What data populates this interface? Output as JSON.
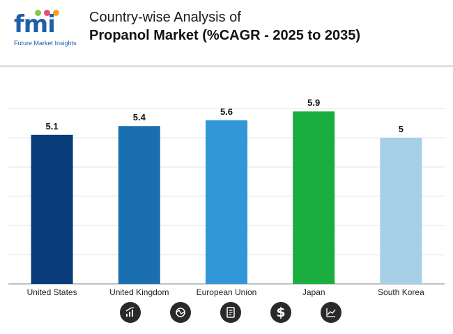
{
  "brand": {
    "logo_text": "fmi",
    "tagline": "Future Market Insights",
    "dot_colors": [
      "#8cc63f",
      "#e94e77",
      "#f7a21b"
    ],
    "logo_color": "#1f5fa8"
  },
  "header": {
    "title_line1": "Country-wise Analysis of",
    "title_line2": "Propanol Market (%CAGR - 2025 to 2035)"
  },
  "chart_data": {
    "type": "bar",
    "title": "Country-wise Analysis of Propanol Market (%CAGR - 2025 to 2035)",
    "xlabel": "",
    "ylabel": "",
    "categories": [
      "United States",
      "United Kingdom",
      "European Union",
      "Japan",
      "South Korea"
    ],
    "values": [
      5.1,
      5.4,
      5.6,
      5.9,
      5
    ],
    "value_labels": [
      "5.1",
      "5.4",
      "5.6",
      "5.9",
      "5"
    ],
    "colors": [
      "#073b7a",
      "#1a6fb0",
      "#3197d6",
      "#1aad3f",
      "#a7d0e8"
    ],
    "ylim": [
      0,
      6
    ],
    "grid": true,
    "legend": "none"
  },
  "footer_icons": [
    "bar-growth-icon",
    "cycle-chart-icon",
    "document-icon",
    "dollar-icon",
    "trend-chart-icon"
  ]
}
